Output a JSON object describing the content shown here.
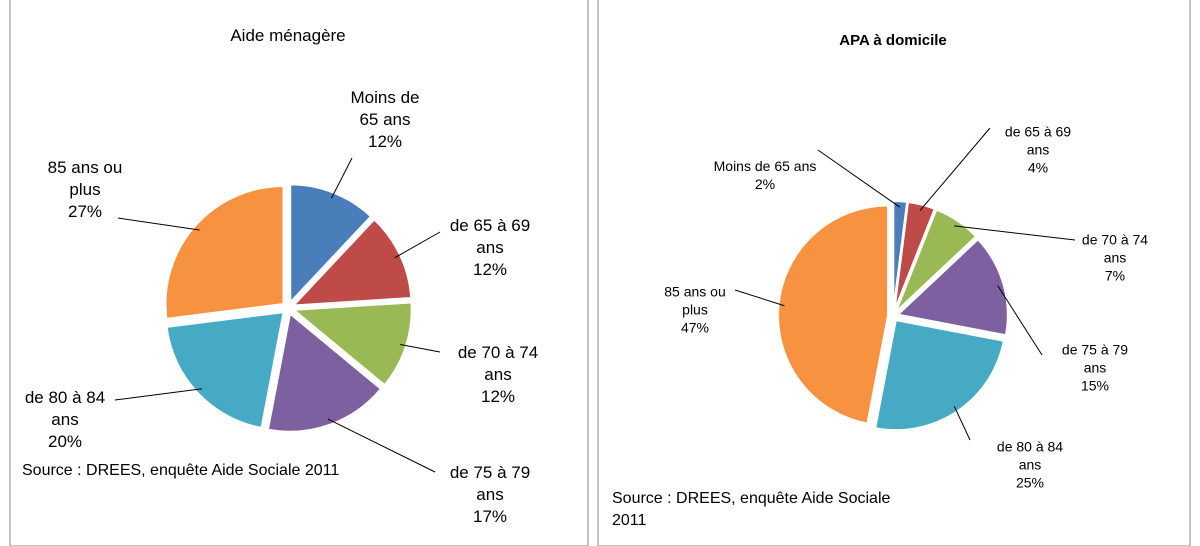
{
  "chart_data": [
    {
      "type": "pie",
      "title": "Aide ménagère",
      "categories": [
        "Moins de 65 ans",
        "de 65 à 69 ans",
        "de 70 à 74 ans",
        "de 75 à 79 ans",
        "de 80 à 84 ans",
        "85 ans ou plus"
      ],
      "values": [
        12,
        12,
        12,
        17,
        20,
        27
      ],
      "value_labels": [
        "12%",
        "12%",
        "12%",
        "17%",
        "20%",
        "27%"
      ],
      "colors": [
        "#4a7ebb",
        "#be4b48",
        "#98b954",
        "#7d60a0",
        "#46aac5",
        "#f69240"
      ],
      "source": "Source : DREES, enquête Aide Sociale 2011"
    },
    {
      "type": "pie",
      "title": "APA à domicile",
      "categories": [
        "Moins de 65 ans",
        "de 65 à 69 ans",
        "de 70 à 74 ans",
        "de 75 à 79 ans",
        "de 80 à 84 ans",
        "85 ans ou plus"
      ],
      "values": [
        2,
        4,
        7,
        15,
        25,
        47
      ],
      "value_labels": [
        "2%",
        "4%",
        "7%",
        "15%",
        "25%",
        "47%"
      ],
      "colors": [
        "#4a7ebb",
        "#be4b48",
        "#98b954",
        "#7d60a0",
        "#46aac5",
        "#f69240"
      ],
      "source": "Source : DREES, enquête Aide Sociale 2011"
    }
  ]
}
